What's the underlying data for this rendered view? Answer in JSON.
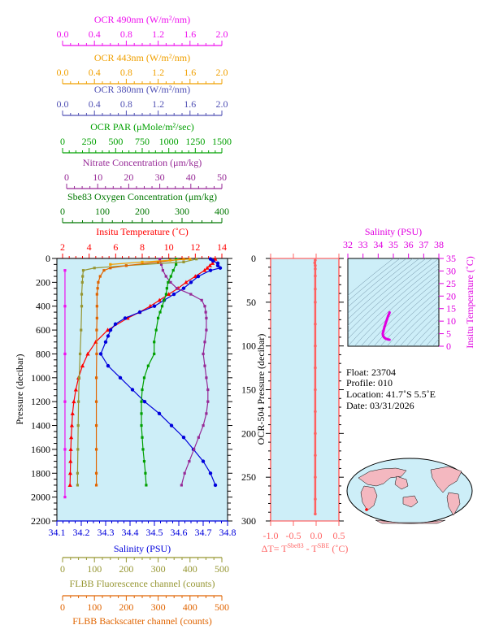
{
  "colors": {
    "ocr490": "#ee11ee",
    "ocr443": "#f0a000",
    "ocr380": "#5050b4",
    "par": "#00a000",
    "nitrate": "#962896",
    "oxygen": "#007800",
    "temperature": "#ff0000",
    "salinity": "#0000dc",
    "fluorescence": "#969632",
    "backscatter": "#e06400",
    "panel_fill": "#cdeef8",
    "ts_title": "#e000e0",
    "dt_series": "#ff6060",
    "dt_axis": "#ff6666"
  },
  "main_chart": {
    "y_label": "Pressure (decibar)",
    "y_ticks": [
      "0",
      "200",
      "400",
      "600",
      "800",
      "1000",
      "1200",
      "1400",
      "1600",
      "1800",
      "2000",
      "2200"
    ],
    "top_axes": [
      {
        "key": "ocr490",
        "label": "OCR 490nm (W/m²/nm)",
        "ticks": [
          "0.0",
          "0.4",
          "0.8",
          "1.2",
          "1.6",
          "2.0"
        ]
      },
      {
        "key": "ocr443",
        "label": "OCR 443nm (W/m²/nm)",
        "ticks": [
          "0.0",
          "0.4",
          "0.8",
          "1.2",
          "1.6",
          "2.0"
        ]
      },
      {
        "key": "ocr380",
        "label": "OCR 380nm (W/m²/nm)",
        "ticks": [
          "0.0",
          "0.4",
          "0.8",
          "1.2",
          "1.6",
          "2.0"
        ]
      },
      {
        "key": "par",
        "label": "OCR PAR (μMole/m²/sec)",
        "ticks": [
          "0",
          "250",
          "500",
          "750",
          "1000",
          "1250",
          "1500"
        ]
      },
      {
        "key": "nitrate",
        "label": "Nitrate Concentration (μm/kg)",
        "ticks": [
          "0",
          "10",
          "20",
          "30",
          "40",
          "50"
        ]
      },
      {
        "key": "oxygen",
        "label": "Sbe83 Oxygen Concentration (μm/kg)",
        "ticks": [
          "0",
          "100",
          "200",
          "300",
          "400"
        ]
      },
      {
        "key": "temperature",
        "label": "Insitu Temperature (˚C)",
        "ticks": [
          "2",
          "4",
          "6",
          "8",
          "10",
          "12",
          "14"
        ]
      }
    ],
    "bottom_axes": [
      {
        "key": "salinity",
        "label": "Salinity (PSU)",
        "ticks": [
          "34.1",
          "34.2",
          "34.3",
          "34.4",
          "34.5",
          "34.6",
          "34.7",
          "34.8"
        ]
      },
      {
        "key": "fluorescence",
        "label": "FLBB Fluorescence channel (counts)",
        "ticks": [
          "0",
          "100",
          "200",
          "300",
          "400",
          "500"
        ]
      },
      {
        "key": "backscatter",
        "label": "FLBB Backscatter channel (counts)",
        "ticks": [
          "0",
          "100",
          "200",
          "300",
          "400",
          "500"
        ]
      }
    ]
  },
  "dt_chart": {
    "y_label": "OCR-504 Pressure (decibar)",
    "y_ticks": [
      "0",
      "50",
      "100",
      "150",
      "200",
      "250",
      "300"
    ],
    "x_ticks": [
      "-1.0",
      "-0.5",
      "0.0",
      "0.5"
    ],
    "x_label_main": "ΔT= T",
    "x_label_sup1": "Sbe83",
    "x_label_mid": " - T",
    "x_label_sup2": "SBE",
    "x_label_end": " (˚C)"
  },
  "ts_chart": {
    "top_label": "Salinity (PSU)",
    "x_ticks": [
      "32",
      "33",
      "34",
      "35",
      "36",
      "37",
      "38"
    ],
    "right_label": "Insitu Temperature (˚C)",
    "y_ticks": [
      "0",
      "5",
      "10",
      "15",
      "20",
      "25",
      "30",
      "35"
    ]
  },
  "info": {
    "float": "Float:  23704",
    "profile": "Profile:  010",
    "location": "Location:  41.7˚S   5.5˚E",
    "date": "Date:  03/31/2026"
  },
  "chart_data": [
    {
      "type": "line",
      "title": "",
      "ylabel": "Pressure (decibar)",
      "ylim": [
        2200,
        0
      ],
      "series": [
        {
          "name": "Insitu Temperature (˚C)",
          "xlim": [
            2,
            14
          ],
          "y": [
            5,
            20,
            40,
            60,
            80,
            100,
            150,
            200,
            250,
            300,
            350,
            400,
            450,
            500,
            600,
            700,
            800,
            900,
            1000,
            1100,
            1200,
            1300,
            1400,
            1500,
            1600,
            1700,
            1800,
            1900
          ],
          "x": [
            13.5,
            13.4,
            13.3,
            13.1,
            12.9,
            12.7,
            12.0,
            11.3,
            10.7,
            10.0,
            9.3,
            8.6,
            7.8,
            6.9,
            5.4,
            4.5,
            3.9,
            3.5,
            3.2,
            3.0,
            2.85,
            2.75,
            2.7,
            2.65,
            2.62,
            2.6,
            2.58,
            2.56
          ]
        },
        {
          "name": "Salinity (PSU)",
          "xlim": [
            34.1,
            34.8
          ],
          "y": [
            5,
            20,
            40,
            60,
            80,
            100,
            150,
            200,
            250,
            300,
            350,
            400,
            450,
            500,
            550,
            600,
            650,
            700,
            800,
            900,
            1000,
            1100,
            1200,
            1300,
            1400,
            1500,
            1600,
            1700,
            1800,
            1900
          ],
          "x": [
            34.73,
            34.74,
            34.76,
            34.76,
            34.77,
            34.73,
            34.68,
            34.65,
            34.62,
            34.58,
            34.54,
            34.5,
            34.44,
            34.38,
            34.34,
            34.32,
            34.31,
            34.3,
            34.28,
            34.31,
            34.36,
            34.41,
            34.46,
            34.52,
            34.57,
            34.62,
            34.66,
            34.7,
            34.73,
            34.75
          ]
        },
        {
          "name": "Nitrate Concentration (μm/kg)",
          "xlim": [
            0,
            50
          ],
          "y": [
            5,
            50,
            100,
            150,
            200,
            250,
            300,
            350,
            400,
            450,
            500,
            600,
            700,
            800,
            900,
            1000,
            1100,
            1200,
            1300,
            1400,
            1500,
            1600,
            1700,
            1800,
            1900
          ],
          "x": [
            30.0,
            30.5,
            31.0,
            32.0,
            33.5,
            35.5,
            40.0,
            43.5,
            44.5,
            44.8,
            45.0,
            45.0,
            44.5,
            44.0,
            44.5,
            45.0,
            45.5,
            45.5,
            45.0,
            44.0,
            42.5,
            41.0,
            39.5,
            38.0,
            37.0
          ]
        },
        {
          "name": "Sbe83 Oxygen Concentration (μm/kg)",
          "xlim": [
            0,
            400
          ],
          "y": [
            5,
            50,
            100,
            150,
            200,
            250,
            300,
            350,
            400,
            450,
            500,
            600,
            700,
            800,
            900,
            1000,
            1100,
            1200,
            1300,
            1400,
            1500,
            1600,
            1700,
            1800,
            1900
          ],
          "x": [
            285,
            285,
            278,
            272,
            265,
            262,
            260,
            255,
            250,
            245,
            240,
            235,
            230,
            230,
            215,
            205,
            200,
            198,
            198,
            198,
            200,
            202,
            205,
            208,
            210
          ]
        },
        {
          "name": "FLBB Fluorescence channel (counts)",
          "xlim": [
            0,
            500
          ],
          "y": [
            5,
            30,
            60,
            80,
            100,
            150,
            200,
            300,
            400,
            600,
            800,
            1000,
            1200,
            1400,
            1600,
            1800,
            1900
          ],
          "x": [
            420,
            380,
            200,
            100,
            65,
            63,
            62,
            60,
            60,
            58,
            55,
            52,
            50,
            49,
            48,
            47,
            47
          ]
        },
        {
          "name": "FLBB Backscatter channel (counts)",
          "xlim": [
            0,
            500
          ],
          "y": [
            5,
            30,
            60,
            80,
            100,
            150,
            200,
            250,
            300,
            400,
            500,
            600,
            800,
            1000,
            1200,
            1400,
            1600,
            1800,
            1900
          ],
          "x": [
            380,
            300,
            200,
            150,
            130,
            118,
            112,
            110,
            108,
            108,
            108,
            107,
            107,
            106,
            106,
            106,
            106,
            106,
            106
          ]
        },
        {
          "name": "OCR 490nm (W/m²/nm)",
          "xlim": [
            0,
            2
          ],
          "y": [
            100,
            400,
            800,
            1200,
            1600,
            2000
          ],
          "x": [
            0.03,
            0.03,
            0.03,
            0.03,
            0.03,
            0.03
          ]
        },
        {
          "name": "OCR 443nm (W/m²/nm)",
          "xlim": [
            0,
            2
          ],
          "y": [
            5,
            15,
            30,
            50
          ],
          "x": [
            1.6,
            1.35,
            1.0,
            0.6
          ]
        }
      ]
    },
    {
      "type": "line",
      "title": "",
      "ylabel": "OCR-504 Pressure (decibar)",
      "ylim": [
        300,
        0
      ],
      "xlim": [
        -1.0,
        0.5
      ],
      "series": [
        {
          "name": "",
          "y": [
            2,
            5,
            8,
            12,
            20,
            35,
            50,
            75,
            100,
            125,
            150,
            175,
            200,
            225,
            250,
            275,
            292
          ],
          "x": [
            -0.02,
            -0.03,
            -0.02,
            -0.02,
            -0.02,
            -0.02,
            -0.02,
            -0.02,
            -0.02,
            -0.02,
            -0.02,
            -0.02,
            -0.02,
            -0.02,
            -0.02,
            -0.02,
            -0.02
          ]
        }
      ]
    },
    {
      "type": "scatter",
      "title": "",
      "xlabel": "Salinity (PSU)",
      "ylabel": "Insitu Temperature (˚C)",
      "xlim": [
        32,
        38
      ],
      "ylim": [
        0,
        35
      ],
      "series": [
        {
          "name": "",
          "x": [
            34.75,
            34.72,
            34.65,
            34.58,
            34.5,
            34.42,
            34.35,
            34.3,
            34.32,
            34.38,
            34.45,
            34.55,
            34.65,
            34.75
          ],
          "y": [
            13.5,
            12.9,
            12.0,
            10.7,
            9.3,
            7.8,
            6.2,
            5.0,
            4.2,
            3.6,
            3.2,
            2.9,
            2.7,
            2.6
          ]
        }
      ]
    }
  ]
}
